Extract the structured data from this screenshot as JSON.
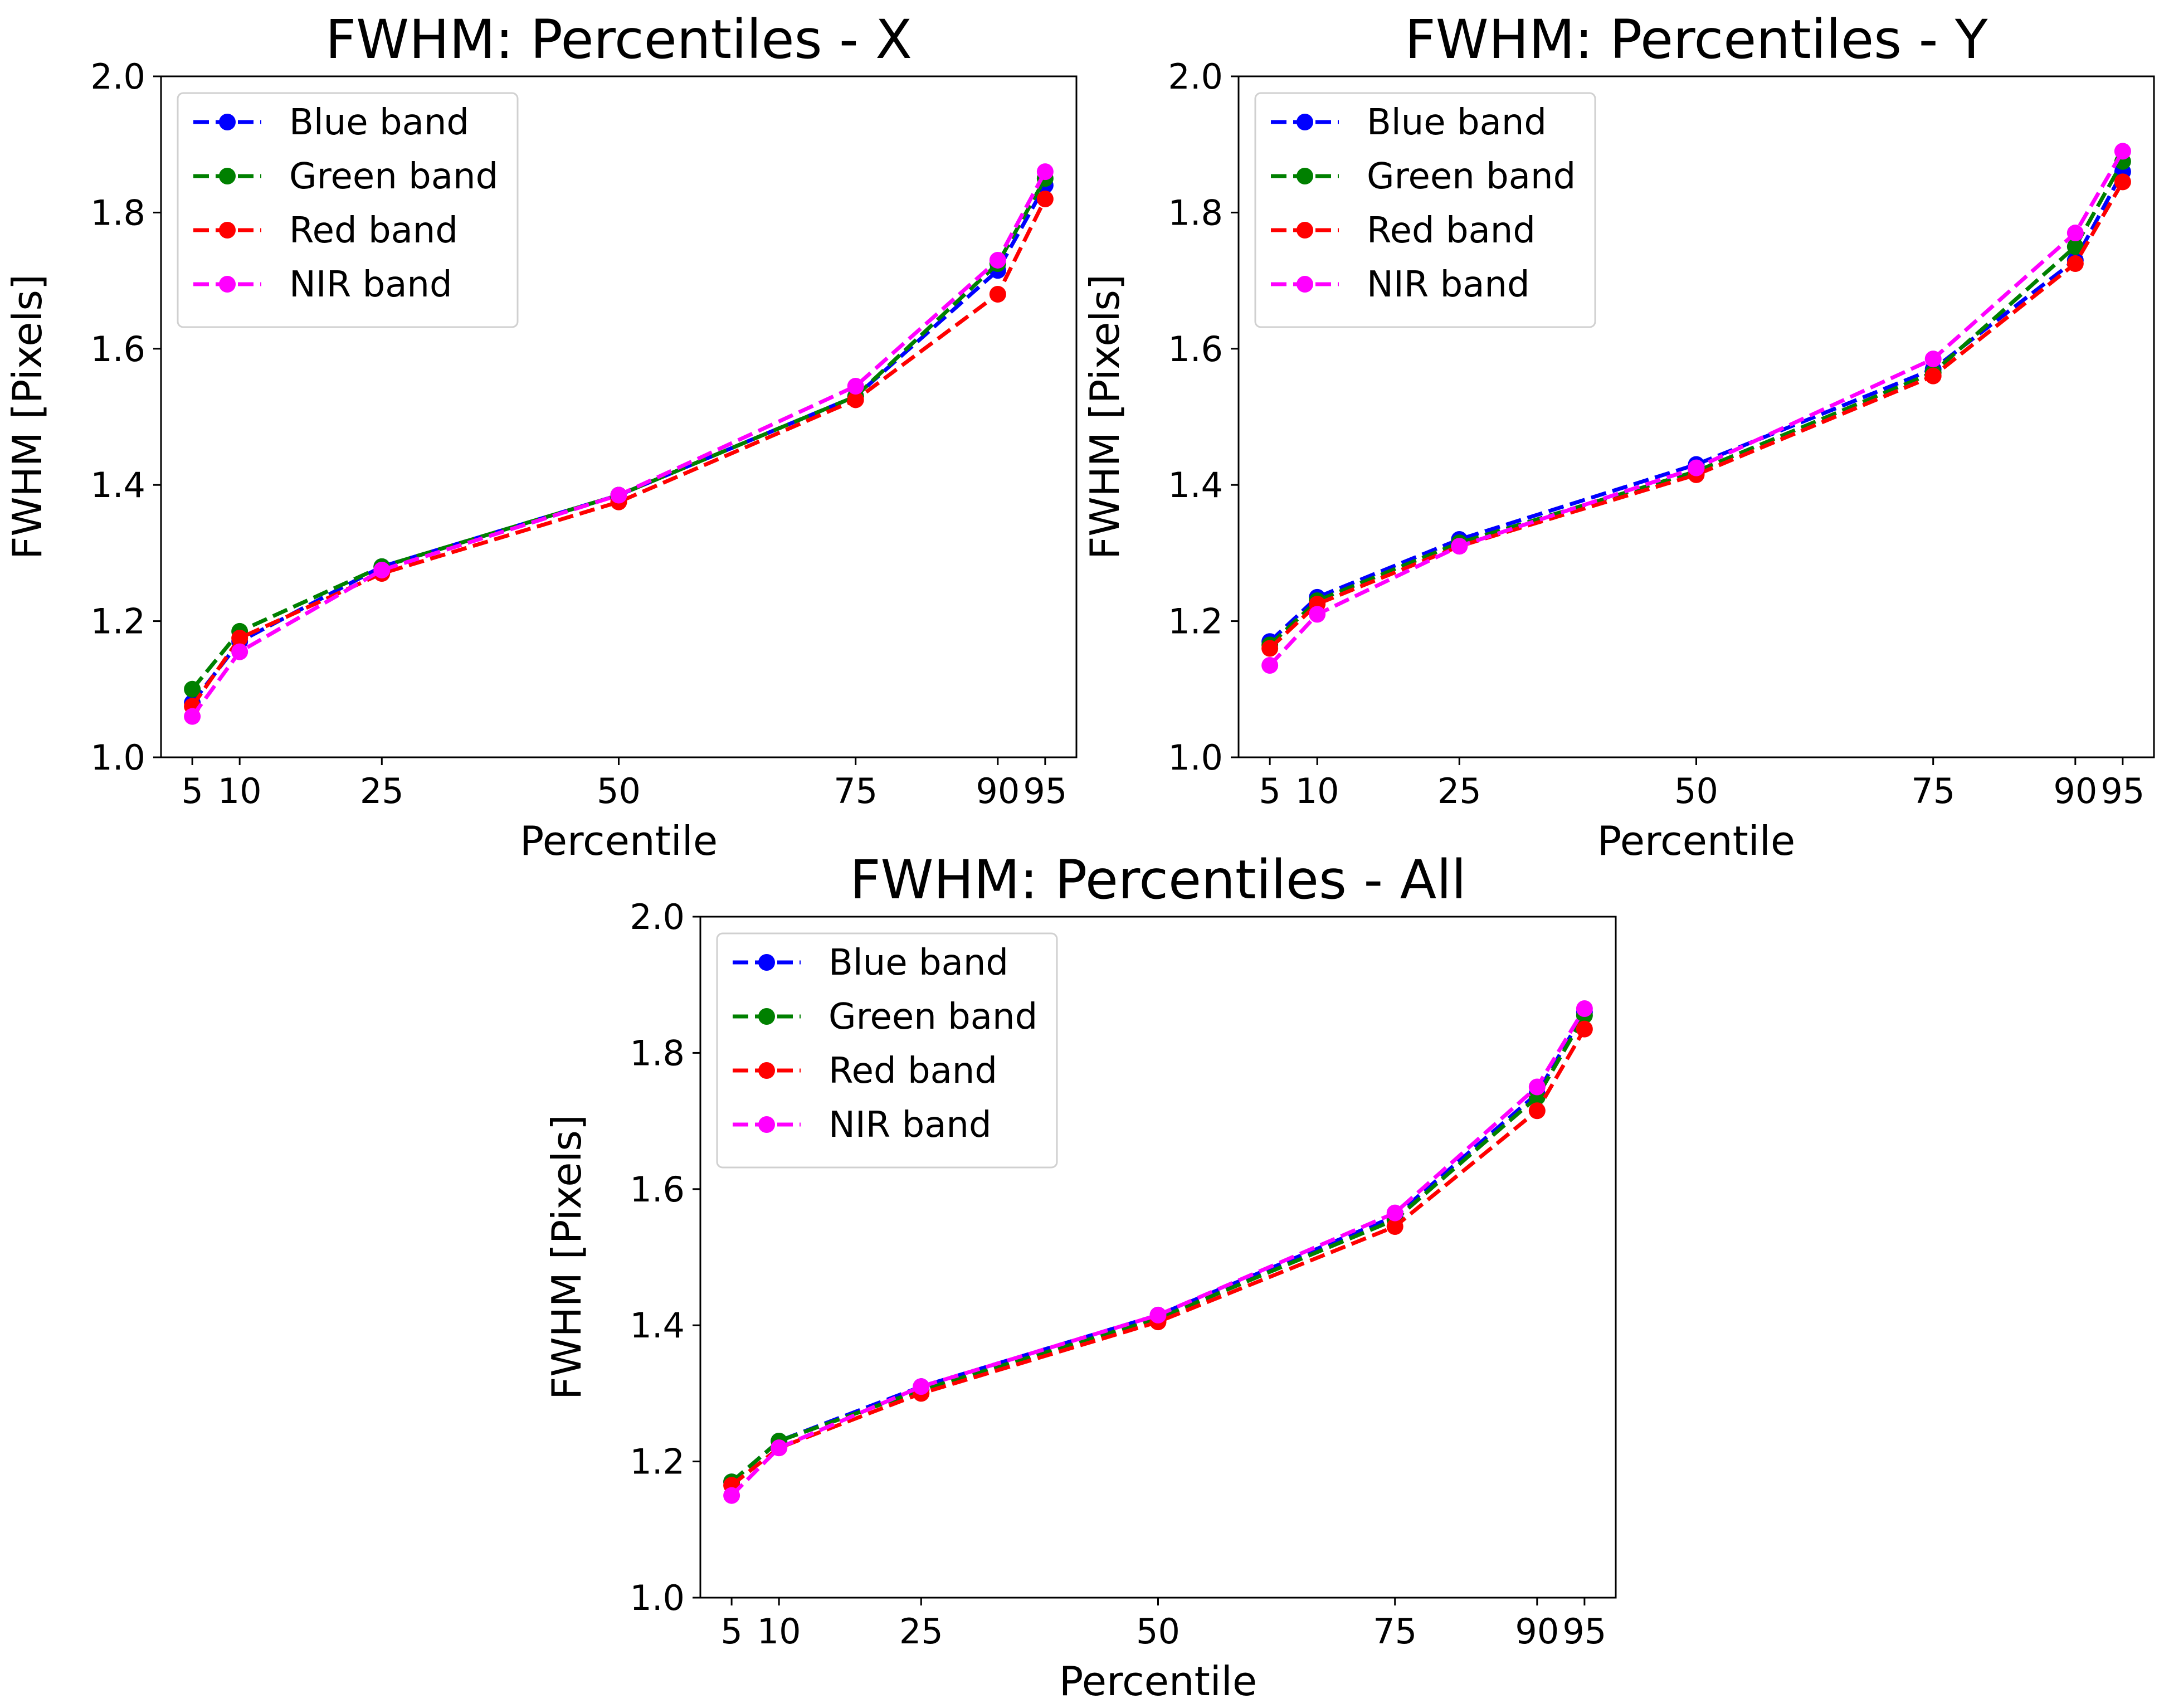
{
  "chart_data": [
    {
      "type": "line",
      "title": "FWHM: Percentiles - X",
      "xlabel": "Percentile",
      "ylabel": "FWHM [Pixels]",
      "x": [
        5,
        10,
        25,
        50,
        75,
        90,
        95
      ],
      "xticks": [
        "5",
        "10",
        "25",
        "50",
        "75",
        "90",
        "95"
      ],
      "xlim": [
        0,
        100
      ],
      "ylim": [
        1.0,
        2.0
      ],
      "yticks": [
        "1.0",
        "1.2",
        "1.4",
        "1.6",
        "1.8",
        "2.0"
      ],
      "legend": "top-left",
      "series": [
        {
          "name": "Blue band",
          "color": "#0000ff",
          "values": [
            1.08,
            1.17,
            1.28,
            1.385,
            1.53,
            1.715,
            1.84
          ]
        },
        {
          "name": "Green band",
          "color": "#008000",
          "values": [
            1.1,
            1.185,
            1.28,
            1.385,
            1.53,
            1.725,
            1.85
          ]
        },
        {
          "name": "Red band",
          "color": "#ff0000",
          "values": [
            1.075,
            1.175,
            1.27,
            1.375,
            1.525,
            1.68,
            1.82
          ]
        },
        {
          "name": "NIR band",
          "color": "#ff00ff",
          "values": [
            1.06,
            1.155,
            1.275,
            1.385,
            1.545,
            1.73,
            1.86
          ]
        }
      ]
    },
    {
      "type": "line",
      "title": "FWHM: Percentiles - Y",
      "xlabel": "Percentile",
      "ylabel": "FWHM [Pixels]",
      "x": [
        5,
        10,
        25,
        50,
        75,
        90,
        95
      ],
      "xticks": [
        "5",
        "10",
        "25",
        "50",
        "75",
        "90",
        "95"
      ],
      "xlim": [
        0,
        100
      ],
      "ylim": [
        1.0,
        2.0
      ],
      "yticks": [
        "1.0",
        "1.2",
        "1.4",
        "1.6",
        "1.8",
        "2.0"
      ],
      "legend": "top-left",
      "series": [
        {
          "name": "Blue band",
          "color": "#0000ff",
          "values": [
            1.17,
            1.235,
            1.32,
            1.43,
            1.57,
            1.73,
            1.86
          ]
        },
        {
          "name": "Green band",
          "color": "#008000",
          "values": [
            1.165,
            1.23,
            1.315,
            1.42,
            1.565,
            1.75,
            1.875
          ]
        },
        {
          "name": "Red band",
          "color": "#ff0000",
          "values": [
            1.16,
            1.225,
            1.31,
            1.415,
            1.56,
            1.725,
            1.845
          ]
        },
        {
          "name": "NIR band",
          "color": "#ff00ff",
          "values": [
            1.135,
            1.21,
            1.31,
            1.425,
            1.585,
            1.77,
            1.89
          ]
        }
      ]
    },
    {
      "type": "line",
      "title": "FWHM: Percentiles - All",
      "xlabel": "Percentile",
      "ylabel": "FWHM [Pixels]",
      "x": [
        5,
        10,
        25,
        50,
        75,
        90,
        95
      ],
      "xticks": [
        "5",
        "10",
        "25",
        "50",
        "75",
        "90",
        "95"
      ],
      "xlim": [
        0,
        100
      ],
      "ylim": [
        1.0,
        2.0
      ],
      "yticks": [
        "1.0",
        "1.2",
        "1.4",
        "1.6",
        "1.8",
        "2.0"
      ],
      "legend": "top-left",
      "series": [
        {
          "name": "Blue band",
          "color": "#0000ff",
          "values": [
            1.17,
            1.23,
            1.31,
            1.415,
            1.56,
            1.74,
            1.86
          ]
        },
        {
          "name": "Green band",
          "color": "#008000",
          "values": [
            1.17,
            1.23,
            1.305,
            1.41,
            1.555,
            1.735,
            1.855
          ]
        },
        {
          "name": "Red band",
          "color": "#ff0000",
          "values": [
            1.165,
            1.22,
            1.3,
            1.405,
            1.545,
            1.715,
            1.835
          ]
        },
        {
          "name": "NIR band",
          "color": "#ff00ff",
          "values": [
            1.15,
            1.22,
            1.31,
            1.415,
            1.565,
            1.75,
            1.865
          ]
        }
      ]
    }
  ]
}
